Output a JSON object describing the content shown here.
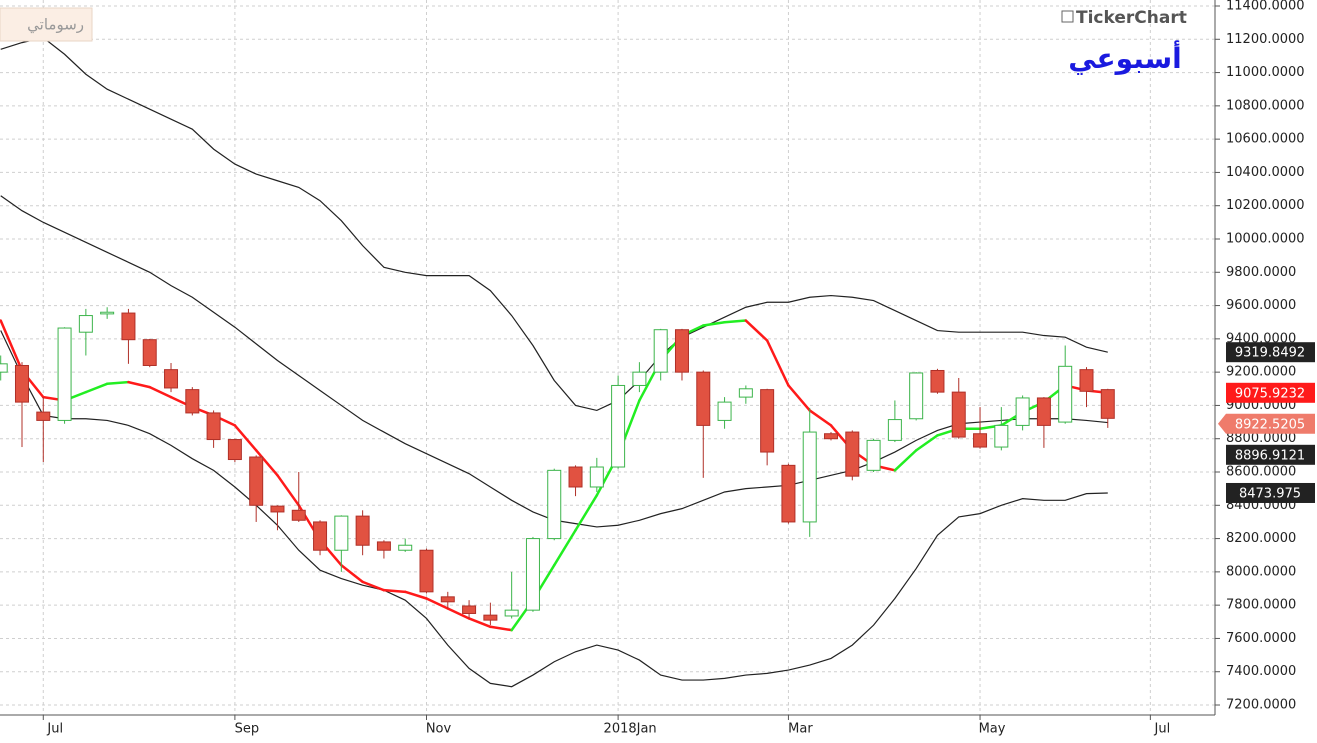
{
  "chart_data": {
    "type": "candlestick",
    "window_label": "رسوماتي",
    "logo": "TickerChart",
    "period": "أسبوعي",
    "categories": [
      null,
      null,
      "Jul",
      null,
      null,
      null,
      null,
      null,
      null,
      null,
      null,
      "Sep",
      null,
      null,
      null,
      null,
      null,
      null,
      null,
      null,
      "Nov",
      null,
      null,
      null,
      null,
      null,
      null,
      null,
      null,
      "2018Jan",
      null,
      null,
      null,
      null,
      null,
      null,
      null,
      "Mar",
      null,
      null,
      null,
      null,
      null,
      null,
      null,
      null,
      "May",
      null,
      null,
      null,
      null,
      null,
      null,
      null,
      "Jul"
    ],
    "open": [
      9200,
      9240,
      8960,
      8910,
      9440,
      9550,
      9555,
      9395,
      9215,
      9095,
      8955,
      8795,
      8690,
      8395,
      8370,
      8300,
      8130,
      8335,
      8180,
      8130,
      8130,
      7850,
      7795,
      7740,
      7735,
      7770,
      8200,
      8630,
      8510,
      8630,
      9120,
      9200,
      9455,
      9200,
      8910,
      9050,
      9095,
      8640,
      8300,
      8830,
      8840,
      8610,
      8790,
      8920,
      9210,
      9080,
      8830,
      8750,
      8880,
      9045,
      8900,
      9215,
      9095,
      null,
      null
    ],
    "high": [
      9300,
      9260,
      9050,
      9470,
      9580,
      9590,
      9580,
      9400,
      9255,
      9110,
      8970,
      8800,
      8700,
      8400,
      8600,
      8310,
      8340,
      8370,
      8190,
      8200,
      8140,
      7880,
      7830,
      7815,
      8000,
      8210,
      8620,
      8640,
      8685,
      9180,
      9260,
      9460,
      9460,
      9210,
      9050,
      9120,
      9100,
      8650,
      8985,
      8840,
      8850,
      8800,
      9030,
      9200,
      9220,
      9165,
      8990,
      8990,
      9060,
      9050,
      9360,
      9230,
      9100,
      null,
      null
    ],
    "low": [
      9150,
      8750,
      8660,
      8890,
      9300,
      9520,
      9250,
      9230,
      9080,
      8940,
      8745,
      8660,
      8300,
      8250,
      8300,
      8100,
      8000,
      8100,
      8080,
      8120,
      7870,
      7780,
      7720,
      7680,
      7720,
      7760,
      8190,
      8455,
      8480,
      8620,
      9080,
      9150,
      9150,
      8565,
      8860,
      9010,
      8640,
      8290,
      8210,
      8790,
      8550,
      8600,
      8780,
      8910,
      9070,
      8800,
      8740,
      8730,
      8850,
      8745,
      8890,
      8990,
      8865,
      null,
      null
    ],
    "close": [
      9250,
      9020,
      8910,
      9465,
      9540,
      9560,
      9395,
      9240,
      9105,
      8955,
      8795,
      8675,
      8400,
      8360,
      8310,
      8130,
      8335,
      8160,
      8130,
      8160,
      7880,
      7820,
      7750,
      7710,
      7770,
      8200,
      8610,
      8510,
      8630,
      9120,
      9200,
      9455,
      9200,
      8880,
      9020,
      9100,
      8720,
      8300,
      8840,
      8800,
      8575,
      8790,
      8915,
      9195,
      9080,
      8810,
      8750,
      8880,
      9045,
      8880,
      9235,
      9085,
      8922.5205,
      null,
      null
    ],
    "up_color": "#ffffff",
    "up_stroke": "#3cb44b",
    "down_color": "#e15241",
    "down_stroke": "#b03028",
    "last_color": "#ef7b6b",
    "series": [
      {
        "color": "#222222",
        "values": [
          11140,
          11180,
          11210,
          11110,
          10990,
          10900,
          10840,
          10780,
          10720,
          10660,
          10540,
          10450,
          10390,
          10350,
          10310,
          10230,
          10110,
          9960,
          9830,
          9800,
          9780,
          9780,
          9780,
          9690,
          9540,
          9360,
          9150,
          9000,
          8970,
          9030,
          9150,
          9300,
          9410,
          9470,
          9530,
          9590,
          9620,
          9620,
          9650,
          9660,
          9650,
          9630,
          9570,
          9510,
          9450,
          9440,
          9440,
          9440,
          9440,
          9420,
          9410,
          9350,
          9319.8492,
          null,
          null
        ]
      },
      {
        "color": "#222222",
        "values": [
          10260,
          10170,
          10100,
          10040,
          9980,
          9920,
          9860,
          9800,
          9720,
          9650,
          9560,
          9470,
          9370,
          9270,
          9180,
          9090,
          9000,
          8910,
          8840,
          8770,
          8710,
          8650,
          8590,
          8510,
          8430,
          8360,
          8310,
          8290,
          8270,
          8280,
          8310,
          8350,
          8380,
          8430,
          8480,
          8500,
          8510,
          8520,
          8550,
          8580,
          8610,
          8660,
          8720,
          8790,
          8850,
          8890,
          8900,
          8910,
          8920,
          8920,
          8920,
          8910,
          8896.9121,
          null,
          null
        ]
      },
      {
        "color": "#222222",
        "values": [
          9450,
          9180,
          8940,
          8920,
          8920,
          8910,
          8880,
          8830,
          8760,
          8680,
          8610,
          8510,
          8400,
          8280,
          8130,
          8010,
          7960,
          7920,
          7890,
          7830,
          7720,
          7560,
          7420,
          7330,
          7310,
          7380,
          7460,
          7520,
          7560,
          7530,
          7470,
          7380,
          7350,
          7350,
          7360,
          7380,
          7390,
          7410,
          7440,
          7480,
          7560,
          7680,
          7840,
          8020,
          8220,
          8330,
          8350,
          8400,
          8440,
          8430,
          8430,
          8470,
          8473.975,
          null,
          null
        ]
      },
      {
        "color": "#ff1a1a",
        "rise_color": "#22ee22",
        "values": [
          9510,
          9210,
          9050,
          9030,
          9080,
          9130,
          9140,
          9110,
          9050,
          8990,
          8940,
          8880,
          8730,
          8580,
          8400,
          8190,
          8040,
          7940,
          7890,
          7880,
          7840,
          7780,
          7720,
          7670,
          7650,
          7830,
          8040,
          8250,
          8460,
          8700,
          9030,
          9270,
          9420,
          9480,
          9500,
          9510,
          9390,
          9120,
          8970,
          8880,
          8730,
          8640,
          8610,
          8730,
          8820,
          8860,
          8860,
          8880,
          8960,
          9020,
          9120,
          9090,
          9075.9232,
          null,
          null
        ]
      }
    ],
    "ylim": [
      7140,
      11436
    ],
    "yticks": [
      {
        "value": 7200,
        "label": "7200.0000"
      },
      {
        "value": 7400,
        "label": "7400.0000"
      },
      {
        "value": 7600,
        "label": "7600.0000"
      },
      {
        "value": 7800,
        "label": "7800.0000"
      },
      {
        "value": 8000,
        "label": "8000.0000"
      },
      {
        "value": 8200,
        "label": "8200.0000"
      },
      {
        "value": 8400,
        "label": "8400.0000"
      },
      {
        "value": 8600,
        "label": "8600.0000"
      },
      {
        "value": 8800,
        "label": "8800.0000"
      },
      {
        "value": 9000,
        "label": "9000.0000"
      },
      {
        "value": 9200,
        "label": "9200.0000"
      },
      {
        "value": 9400,
        "label": "9400.0000"
      },
      {
        "value": 9600,
        "label": "9600.0000"
      },
      {
        "value": 9800,
        "label": "9800.0000"
      },
      {
        "value": 10000,
        "label": "10000.0000"
      },
      {
        "value": 10200,
        "label": "10200.0000"
      },
      {
        "value": 10400,
        "label": "10400.0000"
      },
      {
        "value": 10600,
        "label": "10600.0000"
      },
      {
        "value": 10800,
        "label": "10800.0000"
      },
      {
        "value": 11000,
        "label": "11000.0000"
      },
      {
        "value": 11200,
        "label": "11200.0000"
      },
      {
        "value": 11400,
        "label": "11400.0000"
      }
    ],
    "grid": true
  }
}
